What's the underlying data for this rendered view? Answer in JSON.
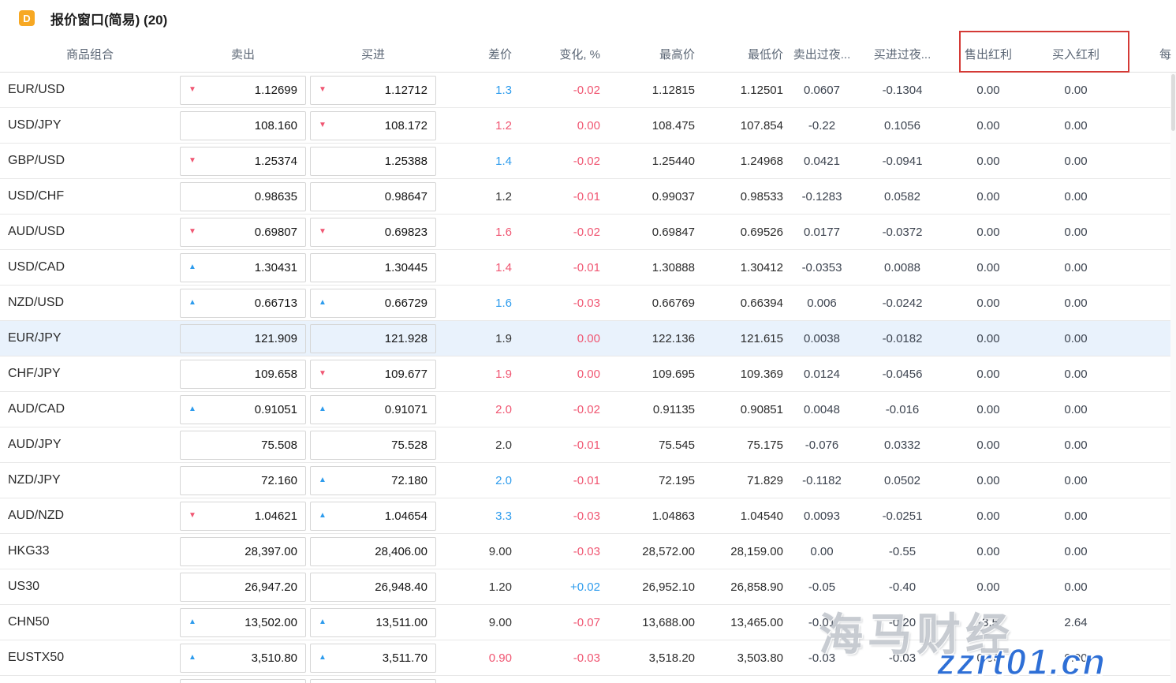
{
  "window": {
    "icon_label": "D",
    "title": "报价窗口(简易) (20)"
  },
  "colors": {
    "up_blue": "#2e9ced",
    "down_red": "#f05672",
    "neutral": "#333333",
    "highlight_row": "#e9f2fc",
    "red_box": "#d43a36"
  },
  "table": {
    "headers": [
      "商品组合",
      "卖出",
      "买进",
      "差价",
      "变化, %",
      "最高价",
      "最低价",
      "卖出过夜...",
      "买进过夜...",
      "售出红利",
      "买入红利",
      "每"
    ],
    "rows": [
      {
        "symbol": "EUR/USD",
        "sell": "1.12699",
        "sell_arrow": "down",
        "buy": "1.12712",
        "buy_arrow": "down",
        "spread": "1.3",
        "spread_color": "blue",
        "change": "-0.02",
        "change_color": "red",
        "high": "1.12815",
        "low": "1.12501",
        "sell_overnight": "0.0607",
        "buy_overnight": "-0.1304",
        "sell_dividend": "0.00",
        "buy_dividend": "0.00",
        "highlighted": false
      },
      {
        "symbol": "USD/JPY",
        "sell": "108.160",
        "sell_arrow": "none",
        "buy": "108.172",
        "buy_arrow": "down",
        "spread": "1.2",
        "spread_color": "red",
        "change": "0.00",
        "change_color": "red",
        "high": "108.475",
        "low": "107.854",
        "sell_overnight": "-0.22",
        "buy_overnight": "0.1056",
        "sell_dividend": "0.00",
        "buy_dividend": "0.00",
        "highlighted": false
      },
      {
        "symbol": "GBP/USD",
        "sell": "1.25374",
        "sell_arrow": "down",
        "buy": "1.25388",
        "buy_arrow": "none",
        "spread": "1.4",
        "spread_color": "blue",
        "change": "-0.02",
        "change_color": "red",
        "high": "1.25440",
        "low": "1.24968",
        "sell_overnight": "0.0421",
        "buy_overnight": "-0.0941",
        "sell_dividend": "0.00",
        "buy_dividend": "0.00",
        "highlighted": false
      },
      {
        "symbol": "USD/CHF",
        "sell": "0.98635",
        "sell_arrow": "none",
        "buy": "0.98647",
        "buy_arrow": "none",
        "spread": "1.2",
        "spread_color": "black",
        "change": "-0.01",
        "change_color": "red",
        "high": "0.99037",
        "low": "0.98533",
        "sell_overnight": "-0.1283",
        "buy_overnight": "0.0582",
        "sell_dividend": "0.00",
        "buy_dividend": "0.00",
        "highlighted": false
      },
      {
        "symbol": "AUD/USD",
        "sell": "0.69807",
        "sell_arrow": "down",
        "buy": "0.69823",
        "buy_arrow": "down",
        "spread": "1.6",
        "spread_color": "red",
        "change": "-0.02",
        "change_color": "red",
        "high": "0.69847",
        "low": "0.69526",
        "sell_overnight": "0.0177",
        "buy_overnight": "-0.0372",
        "sell_dividend": "0.00",
        "buy_dividend": "0.00",
        "highlighted": false
      },
      {
        "symbol": "USD/CAD",
        "sell": "1.30431",
        "sell_arrow": "up",
        "buy": "1.30445",
        "buy_arrow": "none",
        "spread": "1.4",
        "spread_color": "red",
        "change": "-0.01",
        "change_color": "red",
        "high": "1.30888",
        "low": "1.30412",
        "sell_overnight": "-0.0353",
        "buy_overnight": "0.0088",
        "sell_dividend": "0.00",
        "buy_dividend": "0.00",
        "highlighted": false
      },
      {
        "symbol": "NZD/USD",
        "sell": "0.66713",
        "sell_arrow": "up",
        "buy": "0.66729",
        "buy_arrow": "up",
        "spread": "1.6",
        "spread_color": "blue",
        "change": "-0.03",
        "change_color": "red",
        "high": "0.66769",
        "low": "0.66394",
        "sell_overnight": "0.006",
        "buy_overnight": "-0.0242",
        "sell_dividend": "0.00",
        "buy_dividend": "0.00",
        "highlighted": false
      },
      {
        "symbol": "EUR/JPY",
        "sell": "121.909",
        "sell_arrow": "none",
        "buy": "121.928",
        "buy_arrow": "none",
        "spread": "1.9",
        "spread_color": "black",
        "change": "0.00",
        "change_color": "red",
        "high": "122.136",
        "low": "121.615",
        "sell_overnight": "0.0038",
        "buy_overnight": "-0.0182",
        "sell_dividend": "0.00",
        "buy_dividend": "0.00",
        "highlighted": true
      },
      {
        "symbol": "CHF/JPY",
        "sell": "109.658",
        "sell_arrow": "none",
        "buy": "109.677",
        "buy_arrow": "down",
        "spread": "1.9",
        "spread_color": "red",
        "change": "0.00",
        "change_color": "red",
        "high": "109.695",
        "low": "109.369",
        "sell_overnight": "0.0124",
        "buy_overnight": "-0.0456",
        "sell_dividend": "0.00",
        "buy_dividend": "0.00",
        "highlighted": false
      },
      {
        "symbol": "AUD/CAD",
        "sell": "0.91051",
        "sell_arrow": "up",
        "buy": "0.91071",
        "buy_arrow": "up",
        "spread": "2.0",
        "spread_color": "red",
        "change": "-0.02",
        "change_color": "red",
        "high": "0.91135",
        "low": "0.90851",
        "sell_overnight": "0.0048",
        "buy_overnight": "-0.016",
        "sell_dividend": "0.00",
        "buy_dividend": "0.00",
        "highlighted": false
      },
      {
        "symbol": "AUD/JPY",
        "sell": "75.508",
        "sell_arrow": "none",
        "buy": "75.528",
        "buy_arrow": "none",
        "spread": "2.0",
        "spread_color": "black",
        "change": "-0.01",
        "change_color": "red",
        "high": "75.545",
        "low": "75.175",
        "sell_overnight": "-0.076",
        "buy_overnight": "0.0332",
        "sell_dividend": "0.00",
        "buy_dividend": "0.00",
        "highlighted": false
      },
      {
        "symbol": "NZD/JPY",
        "sell": "72.160",
        "sell_arrow": "none",
        "buy": "72.180",
        "buy_arrow": "up",
        "spread": "2.0",
        "spread_color": "blue",
        "change": "-0.01",
        "change_color": "red",
        "high": "72.195",
        "low": "71.829",
        "sell_overnight": "-0.1182",
        "buy_overnight": "0.0502",
        "sell_dividend": "0.00",
        "buy_dividend": "0.00",
        "highlighted": false
      },
      {
        "symbol": "AUD/NZD",
        "sell": "1.04621",
        "sell_arrow": "down",
        "buy": "1.04654",
        "buy_arrow": "up",
        "spread": "3.3",
        "spread_color": "blue",
        "change": "-0.03",
        "change_color": "red",
        "high": "1.04863",
        "low": "1.04540",
        "sell_overnight": "0.0093",
        "buy_overnight": "-0.0251",
        "sell_dividend": "0.00",
        "buy_dividend": "0.00",
        "highlighted": false
      },
      {
        "symbol": "HKG33",
        "sell": "28,397.00",
        "sell_arrow": "none",
        "buy": "28,406.00",
        "buy_arrow": "none",
        "spread": "9.00",
        "spread_color": "black",
        "change": "-0.03",
        "change_color": "red",
        "high": "28,572.00",
        "low": "28,159.00",
        "sell_overnight": "0.00",
        "buy_overnight": "-0.55",
        "sell_dividend": "0.00",
        "buy_dividend": "0.00",
        "highlighted": false
      },
      {
        "symbol": "US30",
        "sell": "26,947.20",
        "sell_arrow": "none",
        "buy": "26,948.40",
        "buy_arrow": "none",
        "spread": "1.20",
        "spread_color": "black",
        "change": "+0.02",
        "change_color": "blue",
        "high": "26,952.10",
        "low": "26,858.90",
        "sell_overnight": "-0.05",
        "buy_overnight": "-0.40",
        "sell_dividend": "0.00",
        "buy_dividend": "0.00",
        "highlighted": false
      },
      {
        "symbol": "CHN50",
        "sell": "13,502.00",
        "sell_arrow": "up",
        "buy": "13,511.00",
        "buy_arrow": "up",
        "spread": "9.00",
        "spread_color": "black",
        "change": "-0.07",
        "change_color": "red",
        "high": "13,688.00",
        "low": "13,465.00",
        "sell_overnight": "-0.01",
        "buy_overnight": "-0.20",
        "sell_dividend": "-3.5",
        "buy_dividend": "2.64",
        "highlighted": false
      },
      {
        "symbol": "EUSTX50",
        "sell": "3,510.80",
        "sell_arrow": "up",
        "buy": "3,511.70",
        "buy_arrow": "up",
        "spread": "0.90",
        "spread_color": "red",
        "change": "-0.03",
        "change_color": "red",
        "high": "3,518.20",
        "low": "3,503.80",
        "sell_overnight": "-0.03",
        "buy_overnight": "-0.03",
        "sell_dividend": "0.00",
        "buy_dividend": "0.00",
        "highlighted": false
      }
    ]
  },
  "watermark": {
    "line1": "海马财经",
    "line2": "zzrt01.cn"
  }
}
